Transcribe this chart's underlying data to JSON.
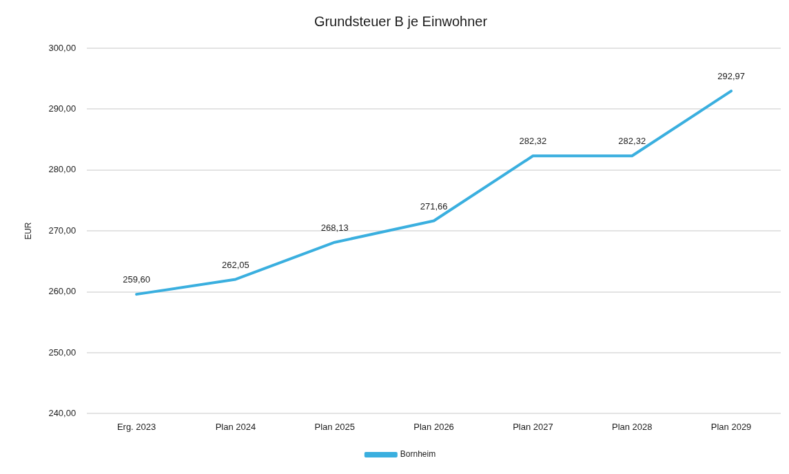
{
  "chart_data": {
    "type": "line",
    "title": "Grundsteuer B je Einwohner",
    "ylabel": "EUR",
    "categories": [
      "Erg. 2023",
      "Plan 2024",
      "Plan 2025",
      "Plan 2026",
      "Plan 2027",
      "Plan 2028",
      "Plan 2029"
    ],
    "series": [
      {
        "name": "Bornheim",
        "color": "#3aafdf",
        "values": [
          259.6,
          262.05,
          268.13,
          271.66,
          282.32,
          282.32,
          292.97
        ],
        "value_labels": [
          "259,60",
          "262,05",
          "268,13",
          "271,66",
          "282,32",
          "282,32",
          "292,97"
        ]
      }
    ],
    "ylim": [
      240,
      300
    ],
    "yticks": [
      {
        "value": 240,
        "label": "240,00"
      },
      {
        "value": 250,
        "label": "250,00"
      },
      {
        "value": 260,
        "label": "260,00"
      },
      {
        "value": 270,
        "label": "270,00"
      },
      {
        "value": 280,
        "label": "280,00"
      },
      {
        "value": 290,
        "label": "290,00"
      },
      {
        "value": 300,
        "label": "300,00"
      }
    ],
    "grid": "y",
    "legend": "bottom",
    "marker": "none",
    "line_style": "solid"
  }
}
